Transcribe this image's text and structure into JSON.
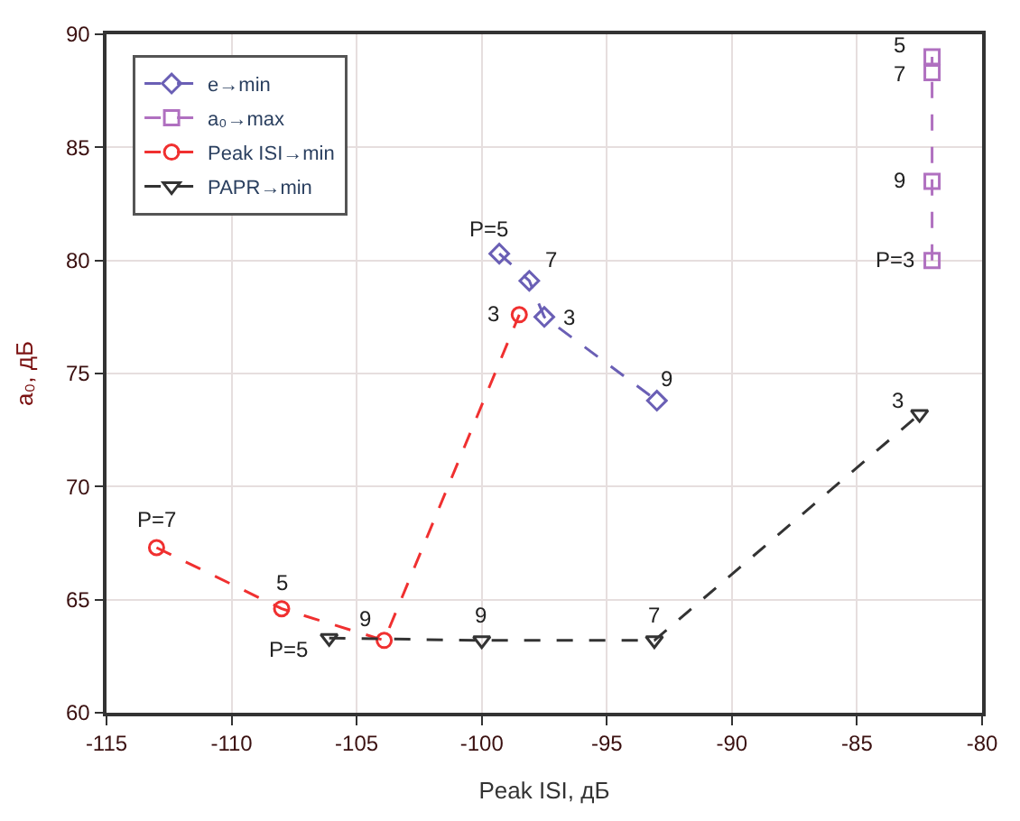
{
  "chart_data": {
    "type": "line",
    "xlabel": "Peak ISI, дБ",
    "ylabel": "a₀, дБ",
    "xlim": [
      -115,
      -80
    ],
    "xticks": [
      -115,
      -110,
      -105,
      -100,
      -95,
      -90,
      -85,
      -80
    ],
    "ylim": [
      60,
      90
    ],
    "yticks": [
      60,
      65,
      70,
      75,
      80,
      85,
      90
    ],
    "grid": true,
    "legend": "top left",
    "line_style": "dashed",
    "series": [
      {
        "name": "e→min",
        "color": "#6a5fb5",
        "marker": "diamond",
        "x": [
          -99.3,
          -98.1,
          -97.5,
          -93.0
        ],
        "values": [
          80.3,
          79.1,
          77.5,
          73.8
        ]
      },
      {
        "name": "a₀→max",
        "color": "#b070c0",
        "marker": "square",
        "x": [
          -82.0,
          -82.0,
          -82.0,
          -82.0
        ],
        "values": [
          80.0,
          83.5,
          88.3,
          89.0
        ]
      },
      {
        "name": "Peak ISI→min",
        "color": "#f03030",
        "marker": "circle",
        "x": [
          -113.0,
          -108.0,
          -103.9,
          -98.5
        ],
        "values": [
          67.3,
          64.6,
          63.2,
          77.6
        ]
      },
      {
        "name": "PAPR→min",
        "color": "#333333",
        "marker": "triangle",
        "x": [
          -106.1,
          -100.0,
          -93.1,
          -82.5
        ],
        "values": [
          63.3,
          63.2,
          63.2,
          73.2
        ]
      }
    ],
    "annotations": [
      {
        "text": "P=5",
        "x": -99.3,
        "y": 80.3
      },
      {
        "text": "7",
        "x": -98.1,
        "y": 79.1
      },
      {
        "text": "3",
        "x": -97.5,
        "y": 77.5
      },
      {
        "text": "9",
        "x": -93.0,
        "y": 73.8
      },
      {
        "text": "P=3",
        "x": -82.0,
        "y": 80.0
      },
      {
        "text": "9",
        "x": -82.0,
        "y": 83.5
      },
      {
        "text": "7",
        "x": -82.0,
        "y": 88.3
      },
      {
        "text": "5",
        "x": -82.0,
        "y": 89.0
      },
      {
        "text": "P=7",
        "x": -113.0,
        "y": 67.3
      },
      {
        "text": "5",
        "x": -108.0,
        "y": 64.6
      },
      {
        "text": "9",
        "x": -103.9,
        "y": 63.2
      },
      {
        "text": "3",
        "x": -98.5,
        "y": 77.6
      },
      {
        "text": "P=5",
        "x": -106.1,
        "y": 63.3
      },
      {
        "text": "9",
        "x": -100.0,
        "y": 63.2
      },
      {
        "text": "7",
        "x": -93.1,
        "y": 63.2
      },
      {
        "text": "3",
        "x": -82.5,
        "y": 73.2
      }
    ]
  }
}
